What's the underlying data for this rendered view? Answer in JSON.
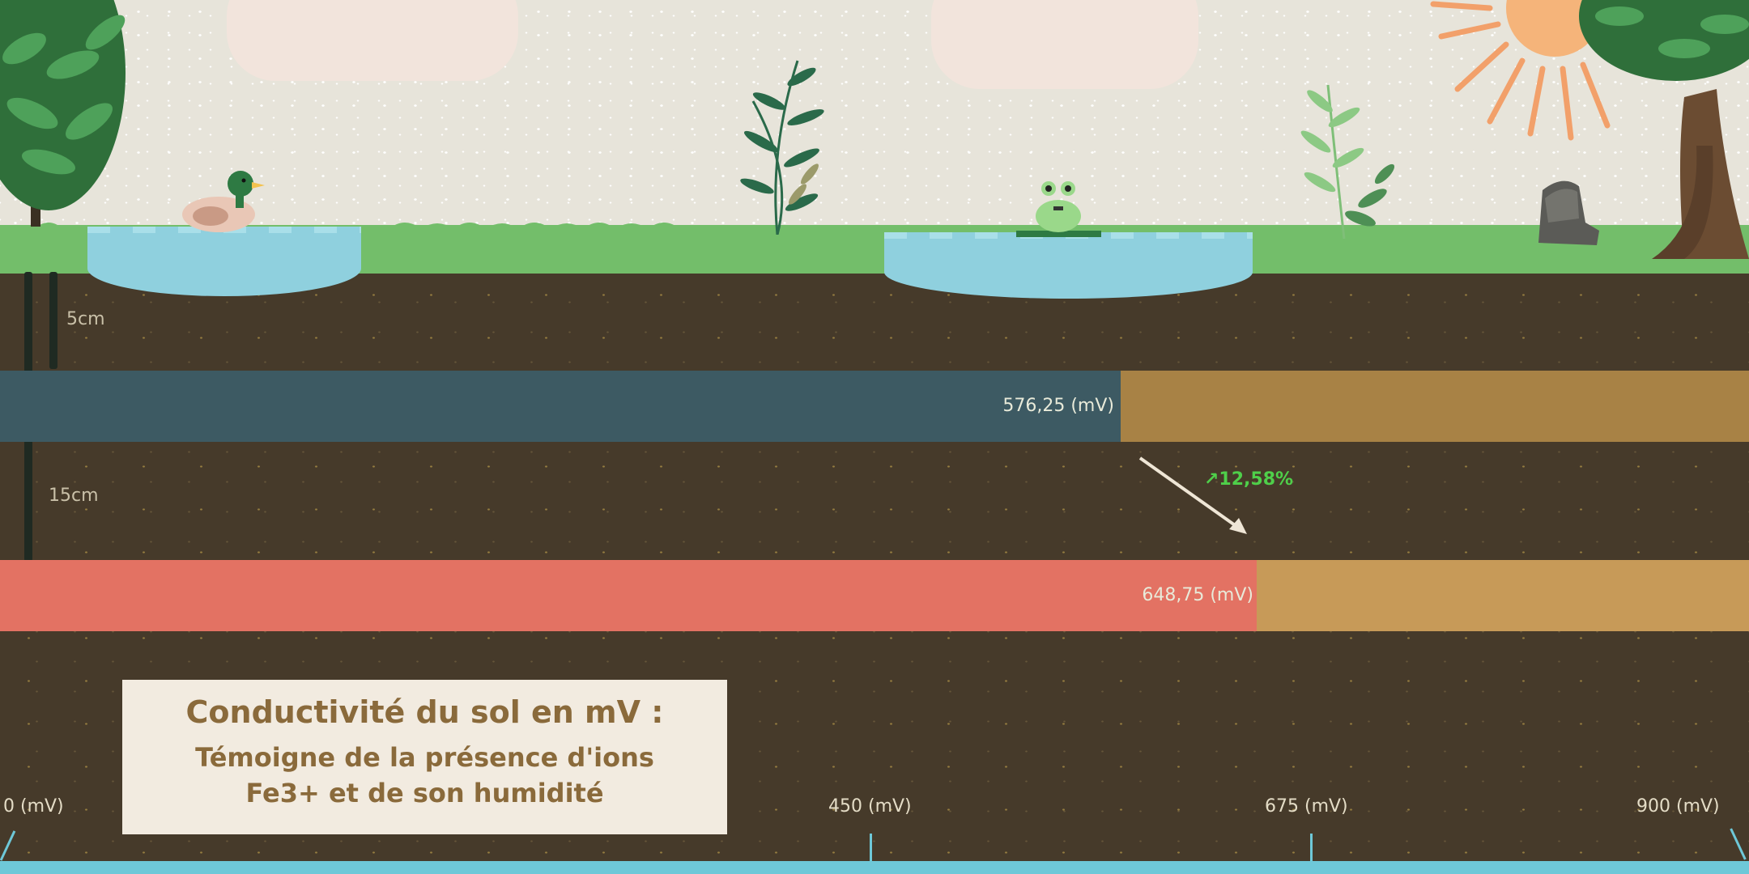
{
  "depths": {
    "shallow": "5cm",
    "deep": "15cm"
  },
  "bands": {
    "shallow_value": "576,25 (mV)",
    "deep_value": "648,75 (mV)",
    "change": "↗12,58%"
  },
  "legend": {
    "title": "Conductivité du sol en mV :",
    "line1": "Témoigne de la présence d'ions",
    "line2": "Fe3+ et de son humidité"
  },
  "scale": {
    "ticks": [
      "0 (mV)",
      "450 (mV)",
      "675 (mV)",
      "900 (mV)"
    ]
  },
  "colors": {
    "soil": "#463a2a",
    "shallow_band": "#3d5a63",
    "deep_band": "#e37263",
    "band_rest": "#a88245",
    "band_rest_deep": "#c79a58",
    "grass": "#73be6a",
    "water": "#8fd0de",
    "accent_text": "#8a6a3b",
    "positive_change": "#4fcf4a"
  },
  "icons": [
    "tree-icon",
    "duck-icon",
    "fern-icon",
    "frog-icon",
    "sun-icon",
    "rock-icon",
    "arrow-icon"
  ]
}
